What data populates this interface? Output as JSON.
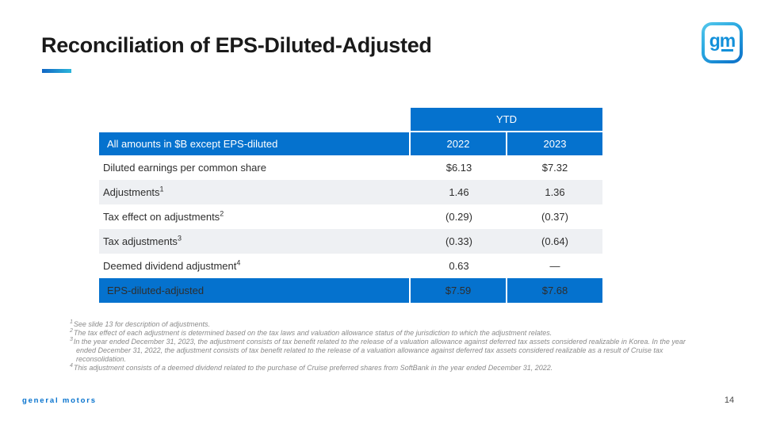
{
  "header": {
    "title": "Reconciliation of EPS-Diluted-Adjusted",
    "logo": {
      "g": "g",
      "m": "m"
    }
  },
  "table": {
    "group_header": "YTD",
    "corner_label": "All amounts in $B except EPS-diluted",
    "columns": [
      "2022",
      "2023"
    ],
    "rows": [
      {
        "label": "Diluted earnings per common share",
        "sup": "",
        "values": [
          "$6.13",
          "$7.32"
        ]
      },
      {
        "label": "Adjustments",
        "sup": "1",
        "values": [
          "1.46",
          "1.36"
        ]
      },
      {
        "label": "Tax effect on adjustments",
        "sup": "2",
        "values": [
          "(0.29)",
          "(0.37)"
        ]
      },
      {
        "label": "Tax adjustments",
        "sup": "3",
        "values": [
          "(0.33)",
          "(0.64)"
        ]
      },
      {
        "label": "Deemed dividend adjustment",
        "sup": "4",
        "values": [
          "0.63",
          "—"
        ]
      },
      {
        "label": "EPS-diluted-adjusted",
        "sup": "",
        "values": [
          "$7.59",
          "$7.68"
        ]
      }
    ]
  },
  "footnotes": [
    {
      "sup": "1",
      "text": "See slide 13 for description of adjustments."
    },
    {
      "sup": "2",
      "text": "The tax effect of each adjustment is determined based on the tax laws and valuation allowance status of the jurisdiction to which the adjustment relates."
    },
    {
      "sup": "3",
      "text": "In the year ended December 31, 2023, the adjustment consists of tax benefit related to the release of a valuation allowance against deferred tax assets considered realizable in Korea. In the year ended December 31,  2022, the adjustment consists of tax benefit related to the release of a valuation allowance against deferred tax assets considered realizable as a result of Cruise tax reconsolidation."
    },
    {
      "sup": "4",
      "text": "This adjustment consists of a deemed dividend related to the purchase of Cruise preferred shares from SoftBank in the year ended December 31, 2022."
    }
  ],
  "footer": {
    "brand": "general motors",
    "page_number": "14"
  },
  "colors": {
    "brand_blue": "#0572ce",
    "alt_row": "#eef0f3",
    "accent_gradient_start": "#1166c4",
    "accent_gradient_end": "#2bb6db"
  }
}
